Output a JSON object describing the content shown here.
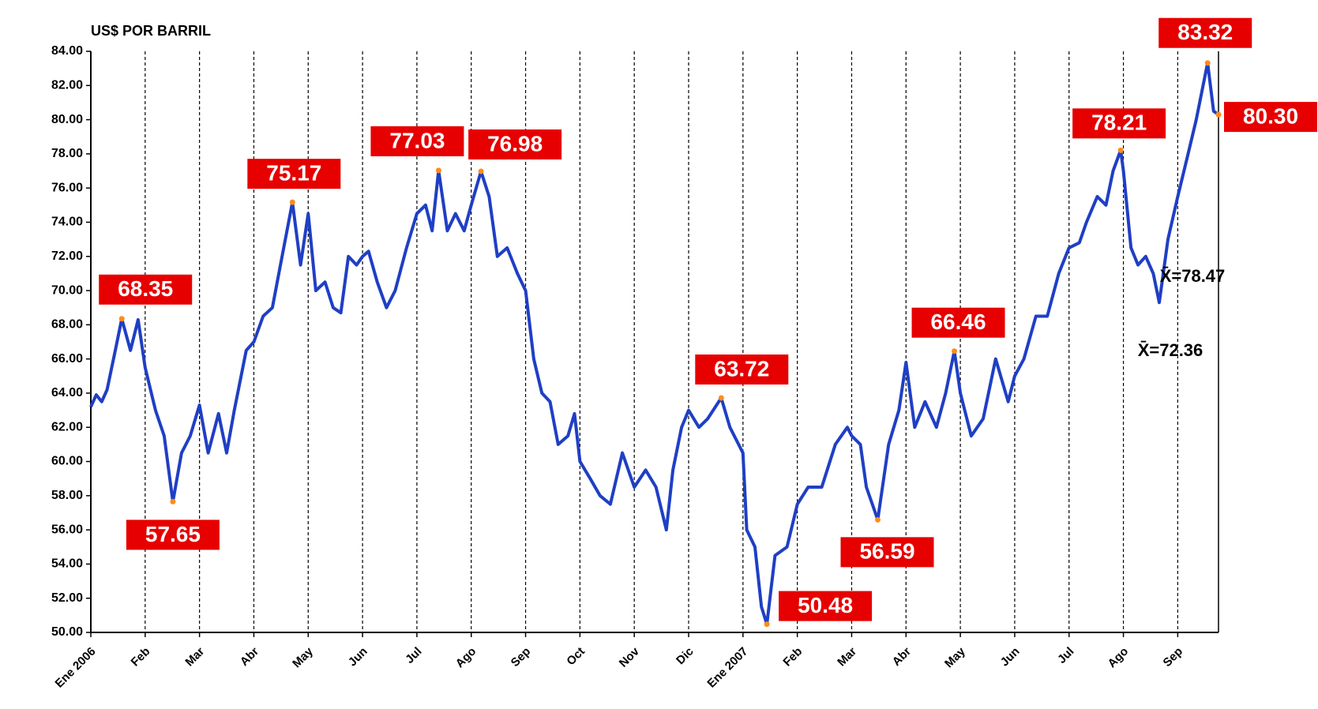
{
  "chart_data": {
    "type": "line",
    "title": "US$ POR BARRIL",
    "color": "#1f3fc4",
    "marker_color": "#ff8c1a",
    "label_box_color": "#e60000",
    "grid": true,
    "xlim": [
      0,
      20.75
    ],
    "ylim": [
      50,
      84
    ],
    "yticks": [
      {
        "value": 50,
        "label": "50.00"
      },
      {
        "value": 52,
        "label": "52.00"
      },
      {
        "value": 54,
        "label": "54.00"
      },
      {
        "value": 56,
        "label": "56.00"
      },
      {
        "value": 58,
        "label": "58.00"
      },
      {
        "value": 60,
        "label": "60.00"
      },
      {
        "value": 62,
        "label": "62.00"
      },
      {
        "value": 64,
        "label": "64.00"
      },
      {
        "value": 66,
        "label": "66.00"
      },
      {
        "value": 68,
        "label": "68.00"
      },
      {
        "value": 70,
        "label": "70.00"
      },
      {
        "value": 72,
        "label": "72.00"
      },
      {
        "value": 74,
        "label": "74.00"
      },
      {
        "value": 76,
        "label": "76.00"
      },
      {
        "value": 78,
        "label": "78.00"
      },
      {
        "value": 80,
        "label": "80.00"
      },
      {
        "value": 82,
        "label": "82.00"
      },
      {
        "value": 84,
        "label": "84.00"
      }
    ],
    "xticks": [
      {
        "value": 0,
        "label": "Ene 2006",
        "color": "#e00000"
      },
      {
        "value": 1,
        "label": "Feb"
      },
      {
        "value": 2,
        "label": "Mar"
      },
      {
        "value": 3,
        "label": "Abr"
      },
      {
        "value": 4,
        "label": "May"
      },
      {
        "value": 5,
        "label": "Jun"
      },
      {
        "value": 6,
        "label": "Jul"
      },
      {
        "value": 7,
        "label": "Ago"
      },
      {
        "value": 8,
        "label": "Sep"
      },
      {
        "value": 9,
        "label": "Oct"
      },
      {
        "value": 10,
        "label": "Nov"
      },
      {
        "value": 11,
        "label": "Dic"
      },
      {
        "value": 12,
        "label": "Ene 2007",
        "color": "#e00000"
      },
      {
        "value": 13,
        "label": "Feb"
      },
      {
        "value": 14,
        "label": "Mar"
      },
      {
        "value": 15,
        "label": "Abr"
      },
      {
        "value": 16,
        "label": "May"
      },
      {
        "value": 17,
        "label": "Jun"
      },
      {
        "value": 18,
        "label": "Jul"
      },
      {
        "value": 19,
        "label": "Ago"
      },
      {
        "value": 20,
        "label": "Sep"
      }
    ],
    "x": [
      0,
      0.1,
      0.2,
      0.3,
      0.45,
      0.57,
      0.73,
      0.87,
      1.0,
      1.19,
      1.35,
      1.51,
      1.67,
      1.83,
      2.0,
      2.16,
      2.35,
      2.5,
      2.64,
      2.86,
      3.0,
      3.17,
      3.34,
      3.52,
      3.71,
      3.86,
      4.0,
      4.14,
      4.31,
      4.46,
      4.6,
      4.74,
      4.89,
      5.0,
      5.11,
      5.27,
      5.44,
      5.6,
      5.81,
      6.0,
      6.16,
      6.28,
      6.4,
      6.56,
      6.71,
      6.87,
      7.0,
      7.18,
      7.33,
      7.48,
      7.66,
      7.85,
      8.0,
      8.15,
      8.3,
      8.45,
      8.6,
      8.78,
      8.9,
      9.0,
      9.19,
      9.37,
      9.56,
      9.78,
      10.0,
      10.21,
      10.4,
      10.59,
      10.71,
      10.87,
      11.0,
      11.19,
      11.35,
      11.6,
      11.76,
      11.92,
      12.0,
      12.07,
      12.22,
      12.34,
      12.44,
      12.59,
      12.81,
      13.0,
      13.2,
      13.45,
      13.7,
      13.92,
      14.0,
      14.16,
      14.27,
      14.48,
      14.68,
      14.87,
      15.0,
      15.16,
      15.35,
      15.56,
      15.73,
      15.89,
      16.0,
      16.2,
      16.42,
      16.65,
      16.88,
      17.0,
      17.17,
      17.39,
      17.6,
      17.81,
      18.0,
      18.19,
      18.32,
      18.52,
      18.68,
      18.81,
      18.95,
      19.0,
      19.14,
      19.27,
      19.41,
      19.55,
      19.66,
      19.82,
      20.0,
      20.19,
      20.34,
      20.55,
      20.66,
      20.75
    ],
    "values": [
      63.2,
      63.9,
      63.5,
      64.2,
      66.5,
      68.35,
      66.5,
      68.3,
      65.5,
      63,
      61.5,
      57.65,
      60.5,
      61.5,
      63.3,
      60.5,
      62.8,
      60.5,
      63,
      66.5,
      67,
      68.5,
      69,
      72,
      75.17,
      71.5,
      74.5,
      70,
      70.5,
      69,
      68.7,
      72,
      71.5,
      72,
      72.3,
      70.5,
      69,
      70,
      72.5,
      74.5,
      75,
      73.5,
      77.03,
      73.5,
      74.5,
      73.5,
      75,
      76.98,
      75.5,
      72,
      72.5,
      71,
      70,
      66,
      64,
      63.5,
      61,
      61.5,
      62.8,
      60,
      59,
      58,
      57.5,
      60.5,
      58.5,
      59.5,
      58.5,
      56,
      59.5,
      62,
      63,
      62,
      62.5,
      63.72,
      62,
      61,
      60.5,
      56,
      55,
      51.5,
      50.48,
      54.5,
      55,
      57.5,
      58.5,
      58.5,
      61,
      62,
      61.5,
      61,
      58.5,
      56.59,
      61,
      63,
      65.8,
      62,
      63.5,
      62,
      64,
      66.46,
      64,
      61.5,
      62.5,
      66,
      63.5,
      65,
      66,
      68.5,
      68.5,
      71,
      72.5,
      72.8,
      74,
      75.5,
      75,
      77,
      78.21,
      77,
      72.5,
      71.5,
      72,
      71,
      69.3,
      73,
      75.5,
      78,
      80,
      83.32,
      80.5,
      80.3
    ],
    "annotations": [
      {
        "x": 0.57,
        "value": 68.35
      },
      {
        "x": 1.51,
        "value": 57.65
      },
      {
        "x": 3.71,
        "value": 75.17
      },
      {
        "x": 6.4,
        "value": 77.03
      },
      {
        "x": 7.18,
        "value": 76.98
      },
      {
        "x": 11.6,
        "value": 63.72
      },
      {
        "x": 12.44,
        "value": 50.48
      },
      {
        "x": 14.48,
        "value": 56.59
      },
      {
        "x": 15.89,
        "value": 66.46
      },
      {
        "x": 18.95,
        "value": 78.21
      },
      {
        "x": 20.55,
        "value": 83.32
      },
      {
        "x": 20.75,
        "value": 80.3,
        "label": "80.30"
      }
    ],
    "mean_labels": [
      "X̄=78.47",
      "X̄=72.36"
    ]
  }
}
